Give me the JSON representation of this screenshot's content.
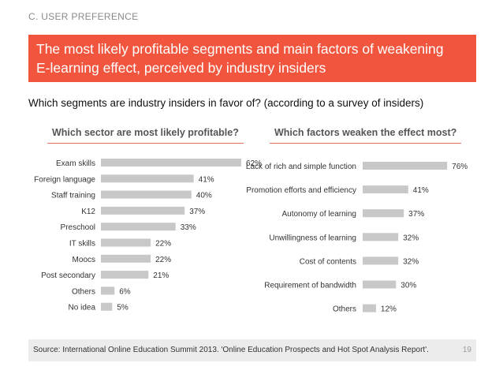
{
  "section_label": "C. USER PREFERENCE",
  "title_line1": "The most likely profitable segments and main factors of weakening",
  "title_line2": "E-learning effect, perceived by industry insiders",
  "question": "Which segments are industry insiders in favor of? (according to a survey of insiders)",
  "footer": {
    "source": "Source: International Online Education Summit 2013. 'Online Education Prospects and Hot  Spot Analysis Report'.",
    "page_number": "19"
  },
  "colors": {
    "accent": "#f2553d",
    "bar": "#c8c8c8"
  },
  "chart_data": [
    {
      "type": "bar",
      "orientation": "horizontal",
      "title": "Which sector are most likely profitable?",
      "categories": [
        "Exam skills",
        "Foreign language",
        "Staff training",
        "K12",
        "Preschool",
        "IT skills",
        "Moocs",
        "Post secondary",
        "Others",
        "No idea"
      ],
      "values": [
        62,
        41,
        40,
        37,
        33,
        22,
        22,
        21,
        6,
        5
      ],
      "value_labels": [
        "62%",
        "41%",
        "40%",
        "37%",
        "33%",
        "22%",
        "22%",
        "21%",
        "6%",
        "5%"
      ],
      "unit": "%"
    },
    {
      "type": "bar",
      "orientation": "horizontal",
      "title": "Which factors weaken the effect most?",
      "categories": [
        "Lack of rich and simple function",
        "Promotion efforts and efficiency",
        "Autonomy of learning",
        "Unwillingness of learning",
        "Cost of contents",
        "Requirement of bandwidth",
        "Others"
      ],
      "values": [
        76,
        41,
        37,
        32,
        32,
        30,
        12
      ],
      "value_labels": [
        "76%",
        "41%",
        "37%",
        "32%",
        "32%",
        "30%",
        "12%"
      ],
      "unit": "%"
    }
  ]
}
